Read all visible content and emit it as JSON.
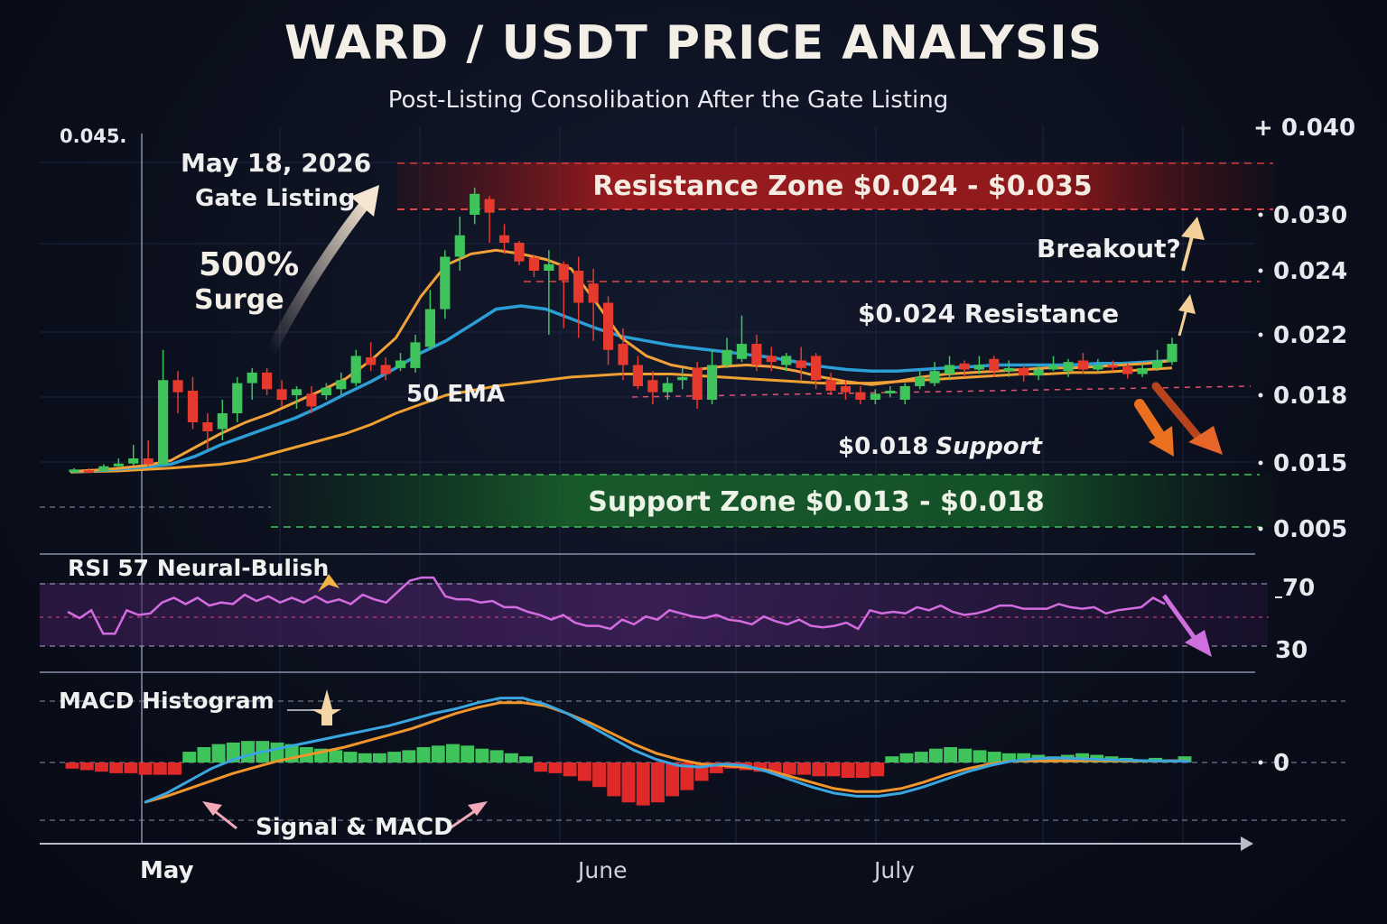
{
  "chart_data": {
    "type": "candlestick",
    "title": "WARD / USDT PRICE ANALYSIS",
    "subtitle": "Post-Listing Consolibation After the Gate Listing",
    "x_ticks": [
      "May",
      "June",
      "July"
    ],
    "left_axis_label": "0.045.",
    "right_axis_ticks": [
      "+ 0.040",
      "0.030",
      "0.024",
      "0.022",
      "0.018",
      "0.015",
      "0.005"
    ],
    "zones": {
      "resistance_label": "Resistance Zone $0.024 - $0.035",
      "support_label": "Support Zone $0.013 - $0.018"
    },
    "annotations": {
      "listing_date": "May 18, 2026",
      "listing_name": "Gate Listing",
      "surge_pct": "500%",
      "surge_word": "Surge",
      "ema_label": "50 EMA",
      "breakout": "Breakout?",
      "resistance_024": "$0.024 Resistance",
      "support_value": "$0.018",
      "support_word": "Support"
    },
    "rsi": {
      "label": "RSI 57 Neural-Bulish",
      "value": 57,
      "levels": [
        70,
        30
      ],
      "level_labels": [
        "70",
        "30"
      ],
      "values": [
        52,
        48,
        53,
        38,
        38,
        53,
        50,
        51,
        58,
        61,
        57,
        61,
        56,
        58,
        57,
        63,
        59,
        62,
        58,
        61,
        58,
        62,
        58,
        60,
        57,
        63,
        60,
        58,
        65,
        72,
        74,
        74,
        62,
        60,
        60,
        58,
        59,
        55,
        55,
        52,
        50,
        47,
        50,
        45,
        43,
        43,
        41,
        47,
        44,
        49,
        47,
        53,
        51,
        49,
        48,
        50,
        47,
        46,
        44,
        49,
        46,
        44,
        47,
        43,
        42,
        43,
        45,
        41,
        53,
        51,
        52,
        51,
        55,
        53,
        56,
        52,
        50,
        51,
        53,
        56,
        56,
        54,
        54,
        54,
        57,
        55,
        54,
        55,
        51,
        53,
        54,
        55,
        61,
        57
      ],
      "color": "#d36ce0"
    },
    "macd": {
      "label": "MACD Histogram",
      "zero_label": "0",
      "legend": "Signal & MACD",
      "histogram": [
        -0.2,
        -0.25,
        -0.3,
        -0.35,
        -0.35,
        -0.4,
        -0.4,
        -0.4,
        0.35,
        0.5,
        0.6,
        0.65,
        0.7,
        0.7,
        0.65,
        0.6,
        0.5,
        0.45,
        0.4,
        0.35,
        0.3,
        0.3,
        0.35,
        0.4,
        0.5,
        0.55,
        0.6,
        0.55,
        0.45,
        0.4,
        0.3,
        0.2,
        -0.3,
        -0.35,
        -0.45,
        -0.6,
        -0.8,
        -1.1,
        -1.3,
        -1.4,
        -1.3,
        -1.1,
        -0.9,
        -0.6,
        -0.35,
        -0.2,
        -0.25,
        -0.3,
        -0.35,
        -0.4,
        -0.4,
        -0.45,
        -0.45,
        -0.5,
        -0.5,
        -0.45,
        0.2,
        0.3,
        0.35,
        0.45,
        0.5,
        0.45,
        0.4,
        0.35,
        0.3,
        0.3,
        0.25,
        0.2,
        0.25,
        0.3,
        0.25,
        0.2,
        0.15,
        0.1,
        0.15,
        0.1,
        0.2
      ],
      "macd_line": [
        -1.3,
        -1.0,
        -0.6,
        -0.2,
        0.1,
        0.3,
        0.45,
        0.6,
        0.75,
        0.9,
        1.05,
        1.2,
        1.4,
        1.6,
        1.75,
        1.95,
        2.1,
        2.1,
        1.9,
        1.6,
        1.2,
        0.8,
        0.4,
        0.1,
        -0.1,
        -0.15,
        -0.05,
        -0.1,
        -0.3,
        -0.55,
        -0.8,
        -1.0,
        -1.1,
        -1.1,
        -1.0,
        -0.8,
        -0.55,
        -0.3,
        -0.1,
        0.05,
        0.12,
        0.15,
        0.12,
        0.1,
        0.08,
        0.06,
        0.05,
        0.04
      ],
      "signal_line": [
        -1.3,
        -1.1,
        -0.85,
        -0.6,
        -0.35,
        -0.15,
        0.05,
        0.2,
        0.35,
        0.5,
        0.7,
        0.9,
        1.1,
        1.35,
        1.6,
        1.8,
        1.95,
        1.95,
        1.85,
        1.6,
        1.3,
        0.95,
        0.6,
        0.3,
        0.1,
        -0.05,
        -0.1,
        -0.15,
        -0.25,
        -0.45,
        -0.65,
        -0.85,
        -0.95,
        -0.95,
        -0.85,
        -0.65,
        -0.4,
        -0.2,
        -0.05,
        0.05,
        0.05,
        0.05,
        0.06,
        0.06,
        0.05,
        0.05,
        0.05,
        0.05
      ],
      "macd_color": "#3aa6e0",
      "signal_color": "#f0952c"
    },
    "price": {
      "candles": [
        [
          0.0137,
          0.014,
          0.0142,
          0.0135
        ],
        [
          0.0139,
          0.0138,
          0.0142,
          0.0135
        ],
        [
          0.0138,
          0.0145,
          0.0148,
          0.0136
        ],
        [
          0.0145,
          0.0149,
          0.0152,
          0.0143
        ],
        [
          0.0149,
          0.0152,
          0.0158,
          0.0146
        ],
        [
          0.0152,
          0.0148,
          0.016,
          0.0145
        ],
        [
          0.0148,
          0.019,
          0.021,
          0.0146
        ],
        [
          0.019,
          0.0182,
          0.0196,
          0.0172
        ],
        [
          0.0183,
          0.0168,
          0.0192,
          0.0165
        ],
        [
          0.0168,
          0.0164,
          0.0172,
          0.0156
        ],
        [
          0.0165,
          0.0172,
          0.0178,
          0.016
        ],
        [
          0.0172,
          0.0188,
          0.0192,
          0.0168
        ],
        [
          0.0188,
          0.0195,
          0.0198,
          0.0178
        ],
        [
          0.0195,
          0.0184,
          0.0198,
          0.018
        ],
        [
          0.0184,
          0.0178,
          0.019,
          0.0175
        ],
        [
          0.018,
          0.0184,
          0.0186,
          0.0174
        ],
        [
          0.0181,
          0.0175,
          0.0186,
          0.0172
        ],
        [
          0.018,
          0.0185,
          0.0188,
          0.0178
        ],
        [
          0.0184,
          0.019,
          0.0195,
          0.018
        ],
        [
          0.0188,
          0.0206,
          0.021,
          0.0186
        ],
        [
          0.0205,
          0.02,
          0.0215,
          0.0196
        ],
        [
          0.02,
          0.0194,
          0.0205,
          0.019
        ],
        [
          0.0198,
          0.0203,
          0.0208,
          0.0196
        ],
        [
          0.0198,
          0.0215,
          0.022,
          0.0195
        ],
        [
          0.0212,
          0.0228,
          0.0234,
          0.021
        ],
        [
          0.0228,
          0.0255,
          0.0262,
          0.0225
        ],
        [
          0.0255,
          0.0278,
          0.0298,
          0.024
        ],
        [
          0.03,
          0.032,
          0.0326,
          0.029
        ],
        [
          0.0315,
          0.0302,
          0.0318,
          0.027
        ],
        [
          0.0278,
          0.027,
          0.029,
          0.0258
        ],
        [
          0.027,
          0.025,
          0.0272,
          0.0246
        ],
        [
          0.0254,
          0.024,
          0.0257,
          0.0238
        ],
        [
          0.024,
          0.0247,
          0.0262,
          0.022
        ],
        [
          0.0247,
          0.0237,
          0.025,
          0.0222
        ],
        [
          0.024,
          0.023,
          0.0255,
          0.0218
        ],
        [
          0.0236,
          0.023,
          0.0242,
          0.0216
        ],
        [
          0.023,
          0.021,
          0.0232,
          0.02
        ],
        [
          0.0214,
          0.02,
          0.0222,
          0.019
        ],
        [
          0.02,
          0.0186,
          0.0206,
          0.0184
        ],
        [
          0.019,
          0.0182,
          0.0196,
          0.0176
        ],
        [
          0.0182,
          0.0188,
          0.0192,
          0.0178
        ],
        [
          0.019,
          0.0192,
          0.0198,
          0.0184
        ],
        [
          0.0198,
          0.0178,
          0.0202,
          0.0174
        ],
        [
          0.0178,
          0.02,
          0.021,
          0.0176
        ],
        [
          0.02,
          0.021,
          0.0218,
          0.0198
        ],
        [
          0.0204,
          0.0214,
          0.0226,
          0.0202
        ],
        [
          0.0214,
          0.02,
          0.022,
          0.0196
        ],
        [
          0.0206,
          0.0202,
          0.0212,
          0.0196
        ],
        [
          0.02,
          0.0206,
          0.0208,
          0.0196
        ],
        [
          0.0203,
          0.0198,
          0.0212,
          0.019
        ],
        [
          0.0206,
          0.019,
          0.0208,
          0.0184
        ],
        [
          0.019,
          0.0183,
          0.0195,
          0.018
        ],
        [
          0.0186,
          0.0182,
          0.019,
          0.0178
        ],
        [
          0.0182,
          0.0178,
          0.0186,
          0.0176
        ],
        [
          0.0178,
          0.0181,
          0.0184,
          0.0176
        ],
        [
          0.0182,
          0.0183,
          0.0186,
          0.0179
        ],
        [
          0.0178,
          0.0186,
          0.0188,
          0.0176
        ],
        [
          0.0186,
          0.0192,
          0.0196,
          0.0184
        ],
        [
          0.0188,
          0.0196,
          0.0202,
          0.0186
        ],
        [
          0.0194,
          0.02,
          0.0206,
          0.019
        ],
        [
          0.0201,
          0.0197,
          0.0203,
          0.0192
        ],
        [
          0.0197,
          0.02,
          0.0206,
          0.0194
        ],
        [
          0.0204,
          0.0196,
          0.0206,
          0.0192
        ],
        [
          0.0196,
          0.0198,
          0.0203,
          0.0192
        ],
        [
          0.0198,
          0.0193,
          0.02,
          0.0189
        ],
        [
          0.0193,
          0.0197,
          0.02,
          0.019
        ],
        [
          0.0197,
          0.02,
          0.0206,
          0.0196
        ],
        [
          0.0196,
          0.0202,
          0.0204,
          0.0192
        ],
        [
          0.0203,
          0.0197,
          0.0208,
          0.0194
        ],
        [
          0.0197,
          0.02,
          0.0204,
          0.0195
        ],
        [
          0.02,
          0.0199,
          0.0203,
          0.0196
        ],
        [
          0.0199,
          0.0194,
          0.0201,
          0.0191
        ],
        [
          0.0194,
          0.0198,
          0.0201,
          0.0192
        ],
        [
          0.0198,
          0.0203,
          0.021,
          0.0196
        ],
        [
          0.0202,
          0.0214,
          0.0218,
          0.02
        ]
      ],
      "ema_fast": [
        0.0137,
        0.0139,
        0.0142,
        0.0146,
        0.0151,
        0.0157,
        0.0163,
        0.0168,
        0.0172,
        0.0177,
        0.0183,
        0.0191,
        0.0203,
        0.0218,
        0.0232,
        0.0246,
        0.0258,
        0.0262,
        0.0258,
        0.0252,
        0.0242,
        0.023,
        0.0218,
        0.0206,
        0.02,
        0.0197,
        0.0199,
        0.02,
        0.0199,
        0.0196,
        0.0192,
        0.0189,
        0.0187,
        0.0189,
        0.0192,
        0.0194,
        0.0195,
        0.0196,
        0.0197,
        0.0198,
        0.0198,
        0.0199,
        0.02,
        0.0201,
        0.0203
      ],
      "ema_mid": [
        0.0137,
        0.0138,
        0.0141,
        0.0144,
        0.0148,
        0.0153,
        0.0158,
        0.0162,
        0.0166,
        0.017,
        0.0175,
        0.0181,
        0.0189,
        0.0198,
        0.0208,
        0.0216,
        0.0223,
        0.0228,
        0.0229,
        0.0228,
        0.0225,
        0.0222,
        0.0219,
        0.0216,
        0.0213,
        0.0211,
        0.0209,
        0.0207,
        0.0205,
        0.0202,
        0.0199,
        0.0197,
        0.0196,
        0.0196,
        0.0197,
        0.0198,
        0.0199,
        0.02,
        0.02,
        0.02,
        0.02,
        0.0201,
        0.0201,
        0.0202,
        0.0203
      ],
      "ema_slow": [
        0.0136,
        0.0137,
        0.0138,
        0.014,
        0.0142,
        0.0145,
        0.0148,
        0.0151,
        0.0154,
        0.0157,
        0.016,
        0.0163,
        0.0167,
        0.0172,
        0.0176,
        0.018,
        0.0183,
        0.0186,
        0.0188,
        0.019,
        0.0192,
        0.0193,
        0.0194,
        0.0194,
        0.0194,
        0.0193,
        0.0192,
        0.0191,
        0.019,
        0.0189,
        0.0188,
        0.0188,
        0.0188,
        0.0189,
        0.019,
        0.0191,
        0.0192,
        0.0193,
        0.0194,
        0.0194,
        0.0195,
        0.0195,
        0.0196,
        0.0197,
        0.0198
      ],
      "up_color": "#3ec45a",
      "down_color": "#e63a2e",
      "ema_fast_color": "#f2a13a",
      "ema_mid_color": "#2b9ed6",
      "ema_slow_color": "#f0a030"
    }
  }
}
